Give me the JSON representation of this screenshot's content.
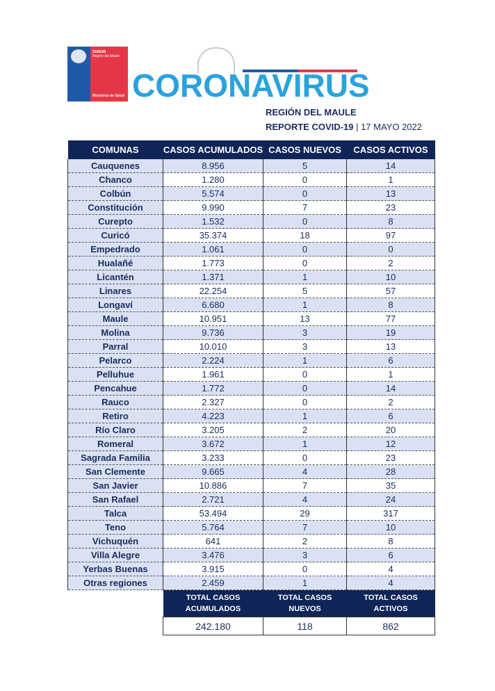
{
  "logo": {
    "line1": "SEREMI",
    "line2": "Región del Maule",
    "line3": "Ministerio de Salud"
  },
  "title": "CORONAVIRUS",
  "region": "REGIÓN DEL MAULE",
  "report": "REPORTE COVID-19",
  "date": "17 MAYO 2022",
  "headers": [
    "COMUNAS",
    "CASOS ACUMULADOS",
    "CASOS NUEVOS",
    "CASOS ACTIVOS"
  ],
  "rows": [
    [
      "Cauquenes",
      "8.956",
      "5",
      "14"
    ],
    [
      "Chanco",
      "1.280",
      "0",
      "1"
    ],
    [
      "Colbún",
      "5.574",
      "0",
      "13"
    ],
    [
      "Constitución",
      "9.990",
      "7",
      "23"
    ],
    [
      "Curepto",
      "1.532",
      "0",
      "8"
    ],
    [
      "Curicó",
      "35.374",
      "18",
      "97"
    ],
    [
      "Empedrado",
      "1.061",
      "0",
      "0"
    ],
    [
      "Hualañé",
      "1.773",
      "0",
      "2"
    ],
    [
      "Licantén",
      "1.371",
      "1",
      "10"
    ],
    [
      "Linares",
      "22.254",
      "5",
      "57"
    ],
    [
      "Longaví",
      "6.680",
      "1",
      "8"
    ],
    [
      "Maule",
      "10.951",
      "13",
      "77"
    ],
    [
      "Molina",
      "9.736",
      "3",
      "19"
    ],
    [
      "Parral",
      "10.010",
      "3",
      "13"
    ],
    [
      "Pelarco",
      "2.224",
      "1",
      "6"
    ],
    [
      "Pelluhue",
      "1.961",
      "0",
      "1"
    ],
    [
      "Pencahue",
      "1.772",
      "0",
      "14"
    ],
    [
      "Rauco",
      "2.327",
      "0",
      "2"
    ],
    [
      "Retiro",
      "4.223",
      "1",
      "6"
    ],
    [
      "Río Claro",
      "3.205",
      "2",
      "20"
    ],
    [
      "Romeral",
      "3.672",
      "1",
      "12"
    ],
    [
      "Sagrada Familia",
      "3.233",
      "0",
      "23"
    ],
    [
      "San Clemente",
      "9.665",
      "4",
      "28"
    ],
    [
      "San Javier",
      "10.886",
      "7",
      "35"
    ],
    [
      "San Rafael",
      "2.721",
      "4",
      "24"
    ],
    [
      "Talca",
      "53.494",
      "29",
      "317"
    ],
    [
      "Teno",
      "5.764",
      "7",
      "10"
    ],
    [
      "Vichuquén",
      "641",
      "2",
      "8"
    ],
    [
      "Villa Alegre",
      "3.476",
      "3",
      "6"
    ],
    [
      "Yerbas Buenas",
      "3.915",
      "0",
      "4"
    ],
    [
      "Otras regiones",
      "2.459",
      "1",
      "4"
    ]
  ],
  "totals": {
    "headers": [
      [
        "TOTAL CASOS",
        "ACUMULADOS"
      ],
      [
        "TOTAL CASOS",
        "NUEVOS"
      ],
      [
        "TOTAL CASOS",
        "ACTIVOS"
      ]
    ],
    "values": [
      "242.180",
      "118",
      "862"
    ]
  }
}
